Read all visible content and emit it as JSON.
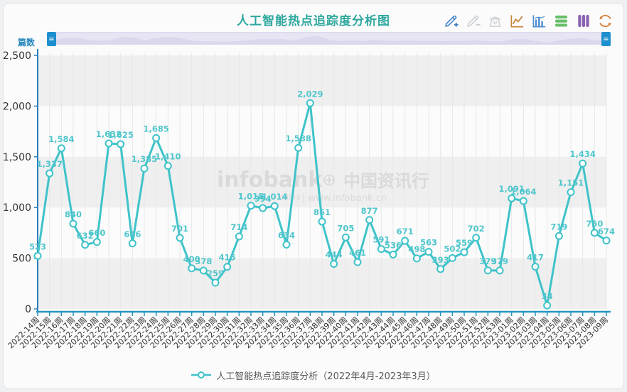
{
  "page": {
    "title": "人工智能热点追踪度分析图"
  },
  "toolbar": {
    "icons": [
      {
        "name": "edit-add-icon",
        "color": "#3a7ec6",
        "enabled": true
      },
      {
        "name": "edit-remove-icon",
        "color": "#c9cdd1",
        "enabled": false
      },
      {
        "name": "clear-icon",
        "color": "#c9cdd1",
        "enabled": false
      },
      {
        "name": "line-chart-icon",
        "color": "#c5823b",
        "enabled": true
      },
      {
        "name": "bar-chart-icon",
        "color": "#4e8fd0",
        "enabled": true
      },
      {
        "name": "stack-icon",
        "color": "#67bf6b",
        "enabled": true
      },
      {
        "name": "tiled-icon",
        "color": "#8a62b3",
        "enabled": true
      },
      {
        "name": "refresh-icon",
        "color": "#d8833b",
        "enabled": true
      }
    ]
  },
  "datazoom": {
    "handle_glyph": "="
  },
  "legend": {
    "label": "人工智能热点追踪度分析（2022年4月-2023年3月）"
  },
  "watermark": {
    "brand": "infobank",
    "globe": "⊕",
    "cn": "中国资讯行",
    "small": "china",
    "url": "| www.infobank.cn"
  },
  "colors": {
    "title": "#2ea89e",
    "series": "#3fc3c9",
    "series_label": "#4fc6cc",
    "y_axis": "#2b7cb9",
    "x_axis": "#2496c0",
    "tick_text": "#333333",
    "band": "#efefef",
    "grid": "#e7e7e7",
    "handle": "#1e8fce"
  },
  "chart_data": {
    "type": "line",
    "title": "人工智能热点追踪度分析图",
    "xlabel": "",
    "ylabel": "篇数",
    "ylim": [
      0,
      2500
    ],
    "y_ticks": [
      0,
      500,
      1000,
      1500,
      2000,
      2500
    ],
    "grid": "horizontal-bands",
    "legend_position": "bottom",
    "categories": [
      "2022-14周",
      "2022-15周",
      "2022-16周",
      "2022-17周",
      "2022-18周",
      "2022-19周",
      "2022-20周",
      "2022-21周",
      "2022-22周",
      "2022-23周",
      "2022-24周",
      "2022-25周",
      "2022-26周",
      "2022-27周",
      "2022-28周",
      "2022-29周",
      "2022-30周",
      "2022-31周",
      "2022-32周",
      "2022-33周",
      "2022-34周",
      "2022-35周",
      "2022-36周",
      "2022-37周",
      "2022-38周",
      "2022-39周",
      "2022-40周",
      "2022-41周",
      "2022-42周",
      "2022-43周",
      "2022-44周",
      "2022-45周",
      "2022-46周",
      "2022-47周",
      "2022-48周",
      "2022-49周",
      "2022-50周",
      "2022-51周",
      "2022-52周",
      "2022-53周",
      "2023-01周",
      "2023-02周",
      "2023-03周",
      "2023-04周",
      "2023-05周",
      "2023-06周",
      "2023-07周",
      "2023-08周",
      "2023-09周"
    ],
    "series": [
      {
        "name": "人工智能热点追踪度分析（2022年4月-2023年3月）",
        "values": [
          523,
          1337,
          1584,
          840,
          632,
          660,
          1632,
          1625,
          646,
          1385,
          1685,
          1410,
          701,
          400,
          378,
          259,
          415,
          714,
          1018,
          994,
          1014,
          634,
          1588,
          2029,
          861,
          444,
          705,
          461,
          877,
          591,
          536,
          671,
          498,
          563,
          393,
          502,
          559,
          702,
          379,
          379,
          1091,
          1064,
          417,
          34,
          719,
          1151,
          1434,
          750,
          674
        ]
      }
    ]
  }
}
